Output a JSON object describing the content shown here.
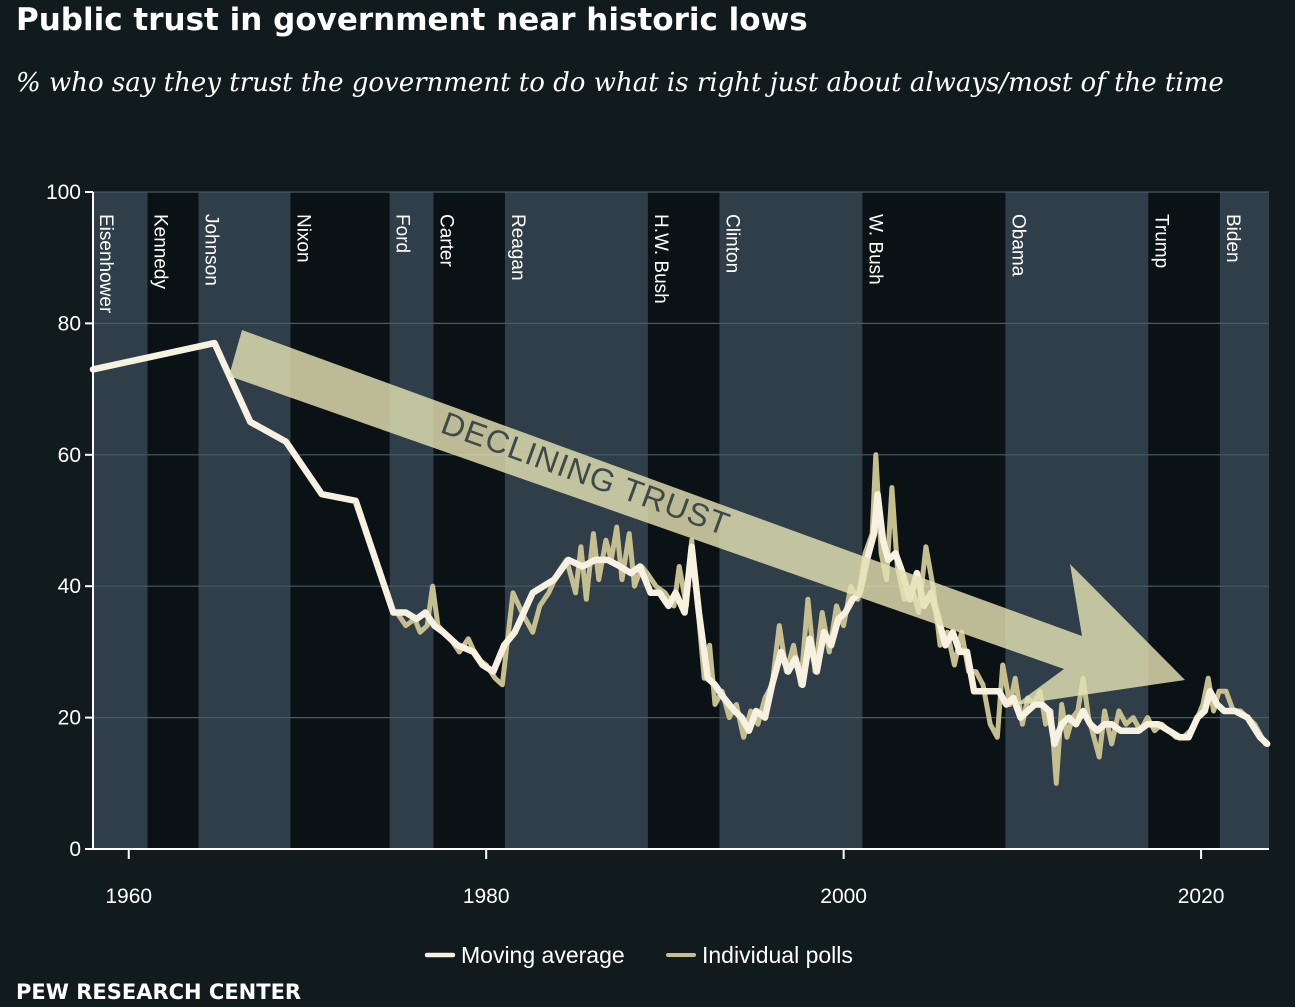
{
  "colors": {
    "background": "#111a1d",
    "band_light": "#2f3e48",
    "band_dark": "#0b1215",
    "grid": "#4a5a63",
    "axis": "#ffffff",
    "moving_average": "#f7f1e2",
    "individual_polls": "#c5bf8f",
    "arrow": "#e3e0b2",
    "arrow_text": "#3d4a4a"
  },
  "title": "Public trust in government near historic lows",
  "subtitle": "% who say they trust the government to do what is right just about always/most of the time",
  "source": "PEW RESEARCH CENTER",
  "chart_data": {
    "type": "line",
    "xlim": [
      1958,
      2023.8
    ],
    "ylim": [
      0,
      100
    ],
    "x_ticks": [
      {
        "value": 1960,
        "label": "1960"
      },
      {
        "value": 1980,
        "label": "1980"
      },
      {
        "value": 2000,
        "label": "2000"
      },
      {
        "value": 2020,
        "label": "2020"
      }
    ],
    "y_ticks": [
      {
        "value": 0,
        "label": "0"
      },
      {
        "value": 20,
        "label": "20"
      },
      {
        "value": 40,
        "label": "40"
      },
      {
        "value": 60,
        "label": "60"
      },
      {
        "value": 80,
        "label": "80"
      },
      {
        "value": 100,
        "label": "100"
      }
    ],
    "grid": true,
    "legend_position": "bottom-center",
    "annotation": "DECLINING TRUST",
    "presidencies": [
      {
        "name": "Eisenhower",
        "start": 1958,
        "end": 1961.05,
        "shade": "light"
      },
      {
        "name": "Kennedy",
        "start": 1961.05,
        "end": 1963.9,
        "shade": "dark"
      },
      {
        "name": "Johnson",
        "start": 1963.9,
        "end": 1969.05,
        "shade": "light"
      },
      {
        "name": "Nixon",
        "start": 1969.05,
        "end": 1974.6,
        "shade": "dark"
      },
      {
        "name": "Ford",
        "start": 1974.6,
        "end": 1977.05,
        "shade": "light"
      },
      {
        "name": "Carter",
        "start": 1977.05,
        "end": 1981.05,
        "shade": "dark"
      },
      {
        "name": "Reagan",
        "start": 1981.05,
        "end": 1989.05,
        "shade": "light"
      },
      {
        "name": "H.W. Bush",
        "start": 1989.05,
        "end": 1993.05,
        "shade": "dark"
      },
      {
        "name": "Clinton",
        "start": 1993.05,
        "end": 2001.05,
        "shade": "light"
      },
      {
        "name": "W. Bush",
        "start": 2001.05,
        "end": 2009.05,
        "shade": "dark"
      },
      {
        "name": "Obama",
        "start": 2009.05,
        "end": 2017.05,
        "shade": "light"
      },
      {
        "name": "Trump",
        "start": 2017.05,
        "end": 2021.05,
        "shade": "dark"
      },
      {
        "name": "Biden",
        "start": 2021.05,
        "end": 2023.8,
        "shade": "light"
      }
    ],
    "series": [
      {
        "name": "Individual polls",
        "points": [
          [
            1975.0,
            36
          ],
          [
            1975.5,
            34
          ],
          [
            1976.0,
            35
          ],
          [
            1976.3,
            33
          ],
          [
            1976.7,
            34
          ],
          [
            1977.0,
            40
          ],
          [
            1977.3,
            34
          ],
          [
            1978.0,
            32
          ],
          [
            1978.5,
            30
          ],
          [
            1979.0,
            32
          ],
          [
            1979.5,
            29
          ],
          [
            1980.0,
            28
          ],
          [
            1980.5,
            26
          ],
          [
            1980.9,
            25
          ],
          [
            1981.5,
            39
          ],
          [
            1982.0,
            36
          ],
          [
            1982.6,
            33
          ],
          [
            1983.0,
            37
          ],
          [
            1983.5,
            39
          ],
          [
            1984.0,
            42
          ],
          [
            1984.5,
            44
          ],
          [
            1985.0,
            39
          ],
          [
            1985.3,
            46
          ],
          [
            1985.6,
            38
          ],
          [
            1986.0,
            48
          ],
          [
            1986.3,
            41
          ],
          [
            1986.7,
            47
          ],
          [
            1987.0,
            44
          ],
          [
            1987.3,
            49
          ],
          [
            1987.6,
            41
          ],
          [
            1988.0,
            48
          ],
          [
            1988.3,
            40
          ],
          [
            1988.7,
            43
          ],
          [
            1989.0,
            42
          ],
          [
            1989.5,
            40
          ],
          [
            1990.0,
            39
          ],
          [
            1990.5,
            37
          ],
          [
            1990.8,
            43
          ],
          [
            1991.2,
            37
          ],
          [
            1991.5,
            47
          ],
          [
            1991.9,
            35
          ],
          [
            1992.2,
            26
          ],
          [
            1992.5,
            31
          ],
          [
            1992.8,
            22
          ],
          [
            1993.2,
            24
          ],
          [
            1993.6,
            20
          ],
          [
            1994.0,
            22
          ],
          [
            1994.4,
            17
          ],
          [
            1994.8,
            21
          ],
          [
            1995.2,
            19
          ],
          [
            1995.6,
            23
          ],
          [
            1996.0,
            25
          ],
          [
            1996.4,
            34
          ],
          [
            1996.8,
            27
          ],
          [
            1997.2,
            31
          ],
          [
            1997.6,
            25
          ],
          [
            1998.0,
            38
          ],
          [
            1998.4,
            27
          ],
          [
            1998.8,
            36
          ],
          [
            1999.2,
            30
          ],
          [
            1999.6,
            37
          ],
          [
            2000.0,
            34
          ],
          [
            2000.4,
            40
          ],
          [
            2000.8,
            38
          ],
          [
            2001.2,
            45
          ],
          [
            2001.6,
            48
          ],
          [
            2001.8,
            60
          ],
          [
            2002.1,
            45
          ],
          [
            2002.4,
            41
          ],
          [
            2002.7,
            55
          ],
          [
            2003.0,
            43
          ],
          [
            2003.4,
            38
          ],
          [
            2003.8,
            40
          ],
          [
            2004.2,
            36
          ],
          [
            2004.6,
            46
          ],
          [
            2005.0,
            40
          ],
          [
            2005.4,
            31
          ],
          [
            2005.8,
            33
          ],
          [
            2006.2,
            28
          ],
          [
            2006.6,
            33
          ],
          [
            2007.0,
            27
          ],
          [
            2007.4,
            27
          ],
          [
            2007.8,
            25
          ],
          [
            2008.2,
            19
          ],
          [
            2008.6,
            17
          ],
          [
            2008.9,
            28
          ],
          [
            2009.3,
            22
          ],
          [
            2009.6,
            26
          ],
          [
            2010.0,
            19
          ],
          [
            2010.3,
            23
          ],
          [
            2010.6,
            22
          ],
          [
            2011.0,
            24
          ],
          [
            2011.3,
            19
          ],
          [
            2011.6,
            21
          ],
          [
            2011.9,
            10
          ],
          [
            2012.2,
            22
          ],
          [
            2012.5,
            17
          ],
          [
            2012.8,
            20
          ],
          [
            2013.1,
            21
          ],
          [
            2013.4,
            26
          ],
          [
            2013.7,
            20
          ],
          [
            2014.0,
            17
          ],
          [
            2014.3,
            14
          ],
          [
            2014.6,
            21
          ],
          [
            2015.0,
            16
          ],
          [
            2015.4,
            21
          ],
          [
            2015.8,
            19
          ],
          [
            2016.2,
            20
          ],
          [
            2016.6,
            18
          ],
          [
            2017.0,
            20
          ],
          [
            2017.4,
            18
          ],
          [
            2017.8,
            19
          ],
          [
            2018.2,
            18
          ],
          [
            2018.6,
            17
          ],
          [
            2019.0,
            17
          ],
          [
            2019.4,
            18
          ],
          [
            2019.8,
            20
          ],
          [
            2020.1,
            22
          ],
          [
            2020.4,
            26
          ],
          [
            2020.7,
            21
          ],
          [
            2021.0,
            24
          ],
          [
            2021.4,
            24
          ],
          [
            2021.8,
            21
          ],
          [
            2022.2,
            21
          ],
          [
            2022.6,
            20
          ],
          [
            2023.0,
            19
          ],
          [
            2023.6,
            16
          ]
        ]
      },
      {
        "name": "Moving average",
        "points": [
          [
            1958.0,
            73
          ],
          [
            1964.8,
            77
          ],
          [
            1966.8,
            65
          ],
          [
            1968.8,
            62
          ],
          [
            1970.8,
            54
          ],
          [
            1972.7,
            53
          ],
          [
            1974.8,
            36
          ],
          [
            1975.5,
            36
          ],
          [
            1976.1,
            35
          ],
          [
            1976.6,
            36
          ],
          [
            1977.1,
            34
          ],
          [
            1977.6,
            33
          ],
          [
            1978.4,
            31
          ],
          [
            1979.3,
            30
          ],
          [
            1979.8,
            28
          ],
          [
            1980.4,
            27
          ],
          [
            1981.0,
            31
          ],
          [
            1981.6,
            33
          ],
          [
            1982.6,
            39
          ],
          [
            1983.8,
            41
          ],
          [
            1984.6,
            44
          ],
          [
            1985.4,
            43
          ],
          [
            1986.1,
            44
          ],
          [
            1986.8,
            44
          ],
          [
            1987.5,
            43
          ],
          [
            1988.1,
            42
          ],
          [
            1988.6,
            43
          ],
          [
            1989.2,
            39
          ],
          [
            1989.7,
            39
          ],
          [
            1990.2,
            37
          ],
          [
            1990.6,
            39
          ],
          [
            1991.1,
            36
          ],
          [
            1991.5,
            46
          ],
          [
            1991.9,
            36
          ],
          [
            1992.4,
            26
          ],
          [
            1992.8,
            25
          ],
          [
            1993.3,
            23
          ],
          [
            1993.9,
            21
          ],
          [
            1994.3,
            20
          ],
          [
            1994.7,
            18
          ],
          [
            1995.1,
            21
          ],
          [
            1995.6,
            20
          ],
          [
            1996.0,
            25
          ],
          [
            1996.5,
            30
          ],
          [
            1996.9,
            27
          ],
          [
            1997.3,
            29
          ],
          [
            1997.7,
            25
          ],
          [
            1998.1,
            32
          ],
          [
            1998.5,
            27
          ],
          [
            1998.9,
            33
          ],
          [
            1999.3,
            31
          ],
          [
            1999.7,
            35
          ],
          [
            2000.1,
            36
          ],
          [
            2000.5,
            38
          ],
          [
            2000.9,
            39
          ],
          [
            2001.3,
            44
          ],
          [
            2001.7,
            48
          ],
          [
            2001.9,
            54
          ],
          [
            2002.2,
            47
          ],
          [
            2002.5,
            44
          ],
          [
            2002.9,
            45
          ],
          [
            2003.3,
            42
          ],
          [
            2003.7,
            38
          ],
          [
            2004.1,
            42
          ],
          [
            2004.5,
            37
          ],
          [
            2004.9,
            39
          ],
          [
            2005.3,
            35
          ],
          [
            2005.7,
            31
          ],
          [
            2006.1,
            33
          ],
          [
            2006.5,
            30
          ],
          [
            2006.9,
            30
          ],
          [
            2007.3,
            24
          ],
          [
            2008.2,
            24
          ],
          [
            2008.7,
            24
          ],
          [
            2009.1,
            22
          ],
          [
            2009.5,
            23
          ],
          [
            2009.9,
            20
          ],
          [
            2010.3,
            21
          ],
          [
            2010.7,
            22
          ],
          [
            2011.1,
            22
          ],
          [
            2011.5,
            21
          ],
          [
            2011.8,
            16
          ],
          [
            2012.2,
            19
          ],
          [
            2012.6,
            20
          ],
          [
            2013.0,
            19
          ],
          [
            2013.4,
            21
          ],
          [
            2013.8,
            19
          ],
          [
            2014.2,
            18
          ],
          [
            2014.6,
            19
          ],
          [
            2015.0,
            19
          ],
          [
            2015.5,
            18
          ],
          [
            2016.0,
            18
          ],
          [
            2016.5,
            18
          ],
          [
            2017.0,
            19
          ],
          [
            2017.6,
            19
          ],
          [
            2018.2,
            18
          ],
          [
            2018.8,
            17
          ],
          [
            2019.3,
            17
          ],
          [
            2019.8,
            20
          ],
          [
            2020.2,
            21
          ],
          [
            2020.5,
            24
          ],
          [
            2020.9,
            22
          ],
          [
            2021.3,
            21
          ],
          [
            2021.9,
            21
          ],
          [
            2022.6,
            20
          ],
          [
            2023.3,
            17
          ],
          [
            2023.7,
            16
          ]
        ]
      }
    ]
  }
}
